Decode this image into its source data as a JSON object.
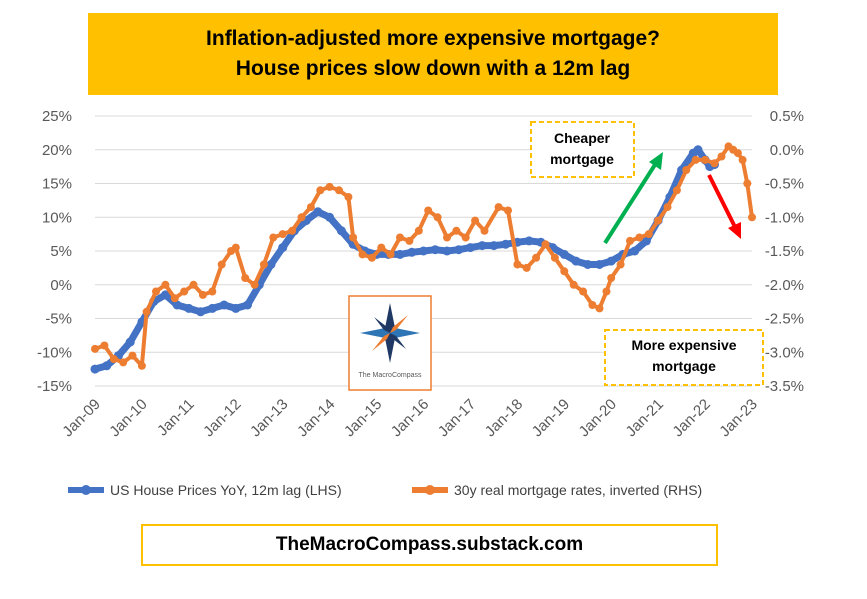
{
  "title": {
    "line1": "Inflation-adjusted more expensive mortgage?",
    "line2": "House prices slow down with a 12m lag"
  },
  "footer": "TheMacroCompass.substack.com",
  "logo": {
    "label": "The MacroCompass",
    "icon": "compass-star-icon"
  },
  "colors": {
    "house": "#4472c4",
    "mortgage": "#ed7d31",
    "title_bg": "#ffc000",
    "green_arrow": "#00b050",
    "red_arrow": "#ff0000"
  },
  "chart_data": {
    "type": "line",
    "left_axis": {
      "min": -15,
      "max": 25,
      "ticks": [
        "25%",
        "20%",
        "15%",
        "10%",
        "5%",
        "0%",
        "-5%",
        "-10%",
        "-15%"
      ]
    },
    "right_axis": {
      "min": -3.5,
      "max": 0.5,
      "ticks": [
        "0.5%",
        "0.0%",
        "-0.5%",
        "-1.0%",
        "-1.5%",
        "-2.0%",
        "-2.5%",
        "-3.0%",
        "-3.5%"
      ]
    },
    "x_ticks": [
      "Jan-09",
      "Jan-10",
      "Jan-11",
      "Jan-12",
      "Jan-13",
      "Jan-14",
      "Jan-15",
      "Jan-16",
      "Jan-17",
      "Jan-18",
      "Jan-19",
      "Jan-20",
      "Jan-21",
      "Jan-22",
      "Jan-23"
    ],
    "grid": "horizontal",
    "legend_position": "bottom",
    "annotations": [
      {
        "text_lines": [
          "Cheaper",
          "mortgage"
        ]
      },
      {
        "text_lines": [
          "More expensive",
          "mortgage"
        ]
      }
    ],
    "series": [
      {
        "name": "US House Prices YoY, 12m lag (LHS)",
        "axis": "left",
        "points": [
          [
            2009.0,
            -12.5
          ],
          [
            2009.25,
            -12.0
          ],
          [
            2009.5,
            -10.5
          ],
          [
            2009.75,
            -8.5
          ],
          [
            2010.0,
            -5.5
          ],
          [
            2010.25,
            -2.5
          ],
          [
            2010.5,
            -1.5
          ],
          [
            2010.75,
            -3.0
          ],
          [
            2011.0,
            -3.5
          ],
          [
            2011.25,
            -4.0
          ],
          [
            2011.5,
            -3.5
          ],
          [
            2011.75,
            -3.0
          ],
          [
            2012.0,
            -3.5
          ],
          [
            2012.25,
            -3.0
          ],
          [
            2012.5,
            0.0
          ],
          [
            2012.75,
            3.0
          ],
          [
            2013.0,
            5.5
          ],
          [
            2013.25,
            8.0
          ],
          [
            2013.5,
            9.5
          ],
          [
            2013.75,
            10.8
          ],
          [
            2014.0,
            10.0
          ],
          [
            2014.25,
            8.0
          ],
          [
            2014.5,
            6.0
          ],
          [
            2014.75,
            5.0
          ],
          [
            2015.0,
            4.5
          ],
          [
            2015.25,
            4.5
          ],
          [
            2015.5,
            4.5
          ],
          [
            2015.75,
            4.8
          ],
          [
            2016.0,
            5.0
          ],
          [
            2016.25,
            5.2
          ],
          [
            2016.5,
            5.0
          ],
          [
            2016.75,
            5.2
          ],
          [
            2017.0,
            5.5
          ],
          [
            2017.25,
            5.8
          ],
          [
            2017.5,
            5.8
          ],
          [
            2017.75,
            6.0
          ],
          [
            2018.0,
            6.3
          ],
          [
            2018.25,
            6.5
          ],
          [
            2018.5,
            6.3
          ],
          [
            2018.75,
            5.5
          ],
          [
            2019.0,
            4.5
          ],
          [
            2019.25,
            3.5
          ],
          [
            2019.5,
            3.0
          ],
          [
            2019.75,
            3.0
          ],
          [
            2020.0,
            3.5
          ],
          [
            2020.25,
            4.5
          ],
          [
            2020.5,
            5.0
          ],
          [
            2020.75,
            6.5
          ],
          [
            2021.0,
            9.5
          ],
          [
            2021.25,
            13.0
          ],
          [
            2021.5,
            17.0
          ],
          [
            2021.75,
            19.5
          ],
          [
            2021.85,
            20.0
          ],
          [
            2022.0,
            18.5
          ],
          [
            2022.1,
            17.5
          ],
          [
            2022.2,
            17.8
          ]
        ]
      },
      {
        "name": "30y real mortgage rates, inverted (RHS)",
        "axis": "right",
        "points": [
          [
            2009.0,
            -2.95
          ],
          [
            2009.2,
            -2.9
          ],
          [
            2009.4,
            -3.1
          ],
          [
            2009.6,
            -3.15
          ],
          [
            2009.8,
            -3.05
          ],
          [
            2010.0,
            -3.2
          ],
          [
            2010.1,
            -2.4
          ],
          [
            2010.3,
            -2.1
          ],
          [
            2010.5,
            -2.0
          ],
          [
            2010.7,
            -2.2
          ],
          [
            2010.9,
            -2.1
          ],
          [
            2011.1,
            -2.0
          ],
          [
            2011.3,
            -2.15
          ],
          [
            2011.5,
            -2.1
          ],
          [
            2011.7,
            -1.7
          ],
          [
            2011.9,
            -1.5
          ],
          [
            2012.0,
            -1.45
          ],
          [
            2012.2,
            -1.9
          ],
          [
            2012.4,
            -2.0
          ],
          [
            2012.6,
            -1.7
          ],
          [
            2012.8,
            -1.3
          ],
          [
            2013.0,
            -1.25
          ],
          [
            2013.2,
            -1.2
          ],
          [
            2013.4,
            -1.0
          ],
          [
            2013.6,
            -0.85
          ],
          [
            2013.8,
            -0.6
          ],
          [
            2014.0,
            -0.55
          ],
          [
            2014.2,
            -0.6
          ],
          [
            2014.4,
            -0.7
          ],
          [
            2014.5,
            -1.3
          ],
          [
            2014.7,
            -1.55
          ],
          [
            2014.9,
            -1.6
          ],
          [
            2015.1,
            -1.45
          ],
          [
            2015.3,
            -1.55
          ],
          [
            2015.5,
            -1.3
          ],
          [
            2015.7,
            -1.35
          ],
          [
            2015.9,
            -1.2
          ],
          [
            2016.1,
            -0.9
          ],
          [
            2016.3,
            -1.0
          ],
          [
            2016.5,
            -1.3
          ],
          [
            2016.7,
            -1.2
          ],
          [
            2016.9,
            -1.3
          ],
          [
            2017.1,
            -1.05
          ],
          [
            2017.3,
            -1.2
          ],
          [
            2017.6,
            -0.85
          ],
          [
            2017.8,
            -0.9
          ],
          [
            2018.0,
            -1.7
          ],
          [
            2018.2,
            -1.75
          ],
          [
            2018.4,
            -1.6
          ],
          [
            2018.6,
            -1.4
          ],
          [
            2018.8,
            -1.6
          ],
          [
            2019.0,
            -1.8
          ],
          [
            2019.2,
            -2.0
          ],
          [
            2019.4,
            -2.1
          ],
          [
            2019.6,
            -2.3
          ],
          [
            2019.75,
            -2.35
          ],
          [
            2019.9,
            -2.1
          ],
          [
            2020.0,
            -1.9
          ],
          [
            2020.2,
            -1.7
          ],
          [
            2020.4,
            -1.35
          ],
          [
            2020.6,
            -1.3
          ],
          [
            2020.8,
            -1.25
          ],
          [
            2021.0,
            -1.05
          ],
          [
            2021.2,
            -0.85
          ],
          [
            2021.4,
            -0.6
          ],
          [
            2021.6,
            -0.3
          ],
          [
            2021.8,
            -0.15
          ],
          [
            2022.0,
            -0.15
          ],
          [
            2022.2,
            -0.2
          ],
          [
            2022.35,
            -0.1
          ],
          [
            2022.5,
            0.05
          ],
          [
            2022.6,
            0.0
          ],
          [
            2022.7,
            -0.05
          ],
          [
            2022.8,
            -0.15
          ],
          [
            2022.9,
            -0.5
          ],
          [
            2023.0,
            -1.0
          ]
        ]
      }
    ]
  }
}
